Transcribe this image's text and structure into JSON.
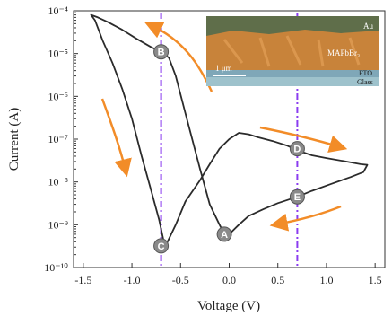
{
  "chart_data": {
    "type": "line",
    "title": "",
    "xlabel": "Voltage (V)",
    "ylabel": "Current (A)",
    "xlim": [
      -1.6,
      1.6
    ],
    "ylim": [
      1e-10,
      0.0001
    ],
    "yscale": "log",
    "grid": false,
    "x_ticks": [
      "-1.5",
      "-1.0",
      "-0.5",
      "0.0",
      "0.5",
      "1.0",
      "1.5"
    ],
    "x_tick_values": [
      -1.5,
      -1.0,
      -0.5,
      0.0,
      0.5,
      1.0,
      1.5
    ],
    "y_ticks": [
      "10⁻¹⁰",
      "10⁻⁹",
      "10⁻⁸",
      "10⁻⁷",
      "10⁻⁶",
      "10⁻⁵",
      "10⁻⁴"
    ],
    "y_tick_values": [
      1e-10,
      1e-09,
      1e-08,
      1e-07,
      1e-06,
      1e-05,
      0.0001
    ],
    "series": [
      {
        "color": "#2b2b2b",
        "x": [
          -0.05,
          -0.1,
          -0.2,
          -0.3,
          -0.45,
          -0.55,
          -0.62,
          -0.7,
          -0.8,
          -0.95,
          -1.1,
          -1.25,
          -1.35,
          -1.42,
          -1.38,
          -1.3,
          -1.2,
          -1.1,
          -1.0,
          -0.9,
          -0.8,
          -0.72,
          -0.66,
          -0.55,
          -0.45,
          -0.3,
          -0.2,
          -0.1,
          0.0,
          0.1,
          0.2,
          0.3,
          0.45,
          0.6,
          0.7,
          0.85,
          1.0,
          1.2,
          1.35,
          1.42,
          1.38,
          1.25,
          1.05,
          0.85,
          0.7,
          0.5,
          0.35,
          0.2,
          0.1,
          0.0,
          -0.05
        ],
        "y": [
          6e-10,
          1e-09,
          3e-09,
          2e-08,
          4e-07,
          3e-06,
          8e-06,
          1.1e-05,
          1.4e-05,
          2.2e-05,
          3.6e-05,
          5.5e-05,
          7e-05,
          8e-05,
          6e-05,
          2e-05,
          6e-06,
          1.5e-06,
          3e-07,
          4e-08,
          6e-09,
          1.3e-09,
          3e-10,
          1e-09,
          3.5e-09,
          1.1e-08,
          2.6e-08,
          6e-08,
          1e-07,
          1.4e-07,
          1.3e-07,
          1.1e-07,
          9e-08,
          7e-08,
          5.5e-08,
          4.2e-08,
          3.6e-08,
          3e-08,
          2.6e-08,
          2.5e-08,
          1.7e-08,
          1.3e-08,
          9e-09,
          6.2e-09,
          4.5e-09,
          3.2e-09,
          2.3e-09,
          1.6e-09,
          1e-09,
          6e-10,
          6e-10
        ]
      }
    ],
    "markers": [
      {
        "label": "A",
        "x": -0.05,
        "y": 6e-10
      },
      {
        "label": "B",
        "x": -0.7,
        "y": 1.1e-05
      },
      {
        "label": "C",
        "x": -0.7,
        "y": 3.2e-10
      },
      {
        "label": "D",
        "x": 0.7,
        "y": 6e-08
      },
      {
        "label": "E",
        "x": 0.7,
        "y": 4.5e-09
      }
    ],
    "vlines": [
      {
        "x": -0.7,
        "color": "#8a3cf0"
      },
      {
        "x": 0.7,
        "color": "#8a3cf0"
      }
    ],
    "arrow_color": "#f28c28",
    "inset": {
      "labels": [
        "Au",
        "MAPbBr₃",
        "FTO",
        "Glass"
      ],
      "scale_label": "1 μm"
    }
  }
}
